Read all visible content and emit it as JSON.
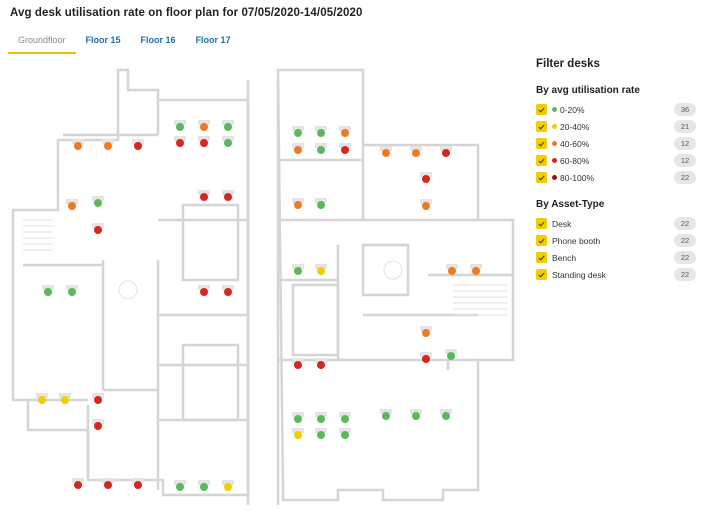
{
  "page": {
    "title": "Avg desk utilisation rate on floor plan for 07/05/2020-14/05/2020"
  },
  "tabs": [
    {
      "label": "Groundfloor",
      "active": true
    },
    {
      "label": "Floor 15",
      "active": false
    },
    {
      "label": "Floor 16",
      "active": false
    },
    {
      "label": "Floor 17",
      "active": false
    }
  ],
  "filters": {
    "title": "Filter desks",
    "utilisation": {
      "title": "By avg utilisation rate",
      "items": [
        {
          "label": "0-20%",
          "count": "36",
          "color": "#5cb85c",
          "checked": true
        },
        {
          "label": "20-40%",
          "count": "21",
          "color": "#f2cd00",
          "checked": true
        },
        {
          "label": "40-60%",
          "count": "12",
          "color": "#f07a22",
          "checked": true
        },
        {
          "label": "60-80%",
          "count": "12",
          "color": "#d9261c",
          "checked": true
        },
        {
          "label": "80-100%",
          "count": "22",
          "color": "#9e0f0f",
          "checked": true
        }
      ]
    },
    "asset_type": {
      "title": "By Asset-Type",
      "items": [
        {
          "label": "Desk",
          "count": "22",
          "checked": true
        },
        {
          "label": "Phone booth",
          "count": "22",
          "checked": true
        },
        {
          "label": "Bench",
          "count": "22",
          "checked": true
        },
        {
          "label": "Standing desk",
          "count": "22",
          "checked": true
        }
      ]
    }
  },
  "colors": {
    "low": "#5cb85c",
    "midlow": "#f2cd00",
    "mid": "#f07a22",
    "high": "#d9261c",
    "veryhigh": "#9e0f0f",
    "accent": "#f2cd00",
    "tab_link": "#1f6fa8"
  },
  "desks": [
    "mid",
    "mid",
    "high",
    "low",
    "mid",
    "low",
    "high",
    "high",
    "low",
    "low",
    "low",
    "mid",
    "mid",
    "low",
    "high",
    "mid",
    "mid",
    "high",
    "mid",
    "low",
    "high",
    "high",
    "high",
    "mid",
    "mid",
    "low",
    "high",
    "high",
    "high",
    "midlow",
    "low",
    "low",
    "mid",
    "mid",
    "low",
    "midlow",
    "mid",
    "high",
    "low",
    "midlow",
    "midlow",
    "high",
    "high",
    "high",
    "high",
    "low",
    "low",
    "low",
    "low",
    "low",
    "low",
    "midlow",
    "low",
    "low",
    "high",
    "high",
    "high",
    "low",
    "low",
    "midlow"
  ]
}
